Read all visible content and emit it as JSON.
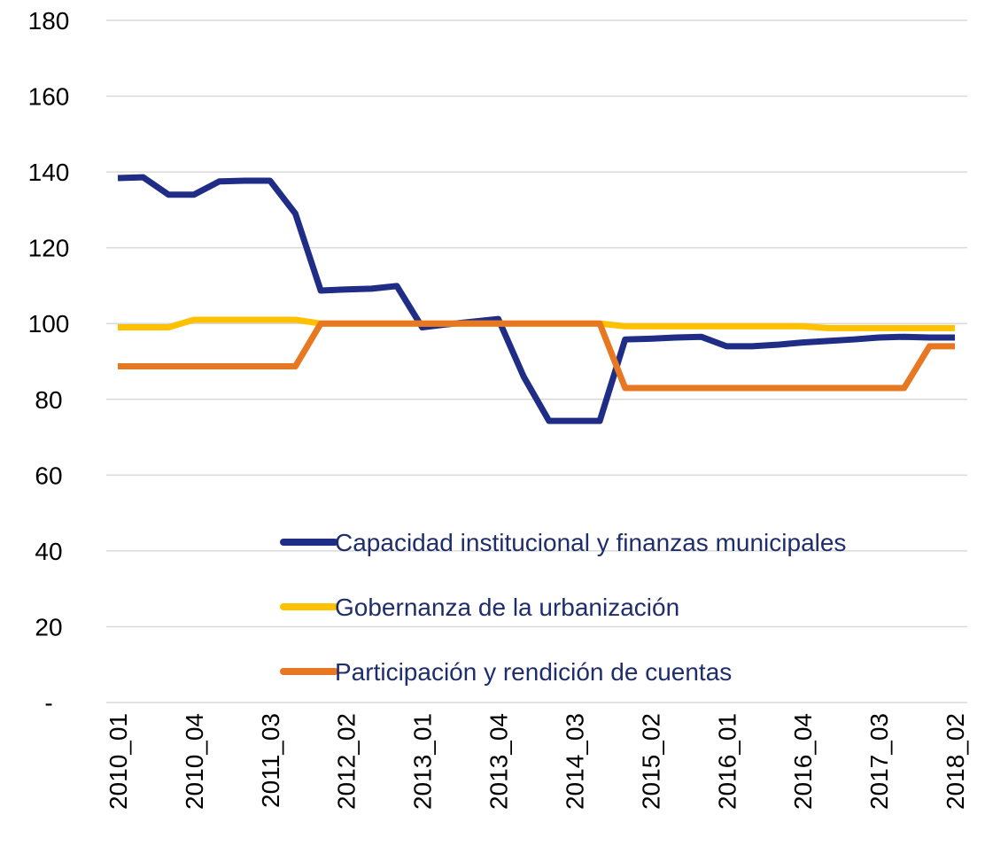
{
  "chart_data": {
    "type": "line",
    "categories": [
      "2010_01",
      null,
      null,
      "2010_04",
      null,
      null,
      "2011_03",
      null,
      null,
      "2012_02",
      null,
      null,
      "2013_01",
      null,
      null,
      "2013_04",
      null,
      null,
      "2014_03",
      null,
      null,
      "2015_02",
      null,
      null,
      "2016_01",
      null,
      null,
      "2016_04",
      null,
      null,
      "2017_03",
      null,
      null,
      "2018_02"
    ],
    "series": [
      {
        "name": "Capacidad institucional y finanzas municipales",
        "color": "#1f2d86",
        "values": [
          138.4,
          138.6,
          134,
          134,
          137.5,
          137.7,
          137.7,
          129,
          108.7,
          109,
          109.2,
          109.9,
          99,
          99.8,
          100.5,
          101.2,
          86,
          74.3,
          74.3,
          74.3,
          95.8,
          96,
          96.3,
          96.5,
          94,
          94,
          94.4,
          95,
          95.4,
          95.8,
          96.3,
          96.5,
          96.3,
          96.3
        ]
      },
      {
        "name": "Gobernanza de la urbanización",
        "color": "#ffc000",
        "values": [
          99,
          99,
          99,
          101,
          101,
          101,
          101,
          101,
          100,
          100,
          100,
          100,
          100,
          100,
          100,
          100,
          100,
          100,
          100,
          100,
          99.3,
          99.3,
          99.3,
          99.3,
          99.3,
          99.3,
          99.3,
          99.3,
          98.8,
          98.8,
          98.8,
          98.8,
          98.8,
          98.8
        ]
      },
      {
        "name": "Participación y rendición de cuentas",
        "color": "#e87722",
        "values": [
          88.7,
          88.7,
          88.7,
          88.7,
          88.7,
          88.7,
          88.7,
          88.7,
          100,
          100,
          100,
          100,
          100,
          100,
          100,
          100,
          100,
          100,
          100,
          100,
          83,
          83,
          83,
          83,
          83,
          83,
          83,
          83,
          83,
          83,
          83,
          83,
          94,
          94
        ]
      }
    ],
    "ylim": [
      0,
      180
    ],
    "yticks": [
      {
        "value": 0,
        "label": "-"
      },
      20,
      40,
      60,
      80,
      100,
      120,
      140,
      160,
      180
    ],
    "grid": true,
    "legend": "lower right"
  }
}
